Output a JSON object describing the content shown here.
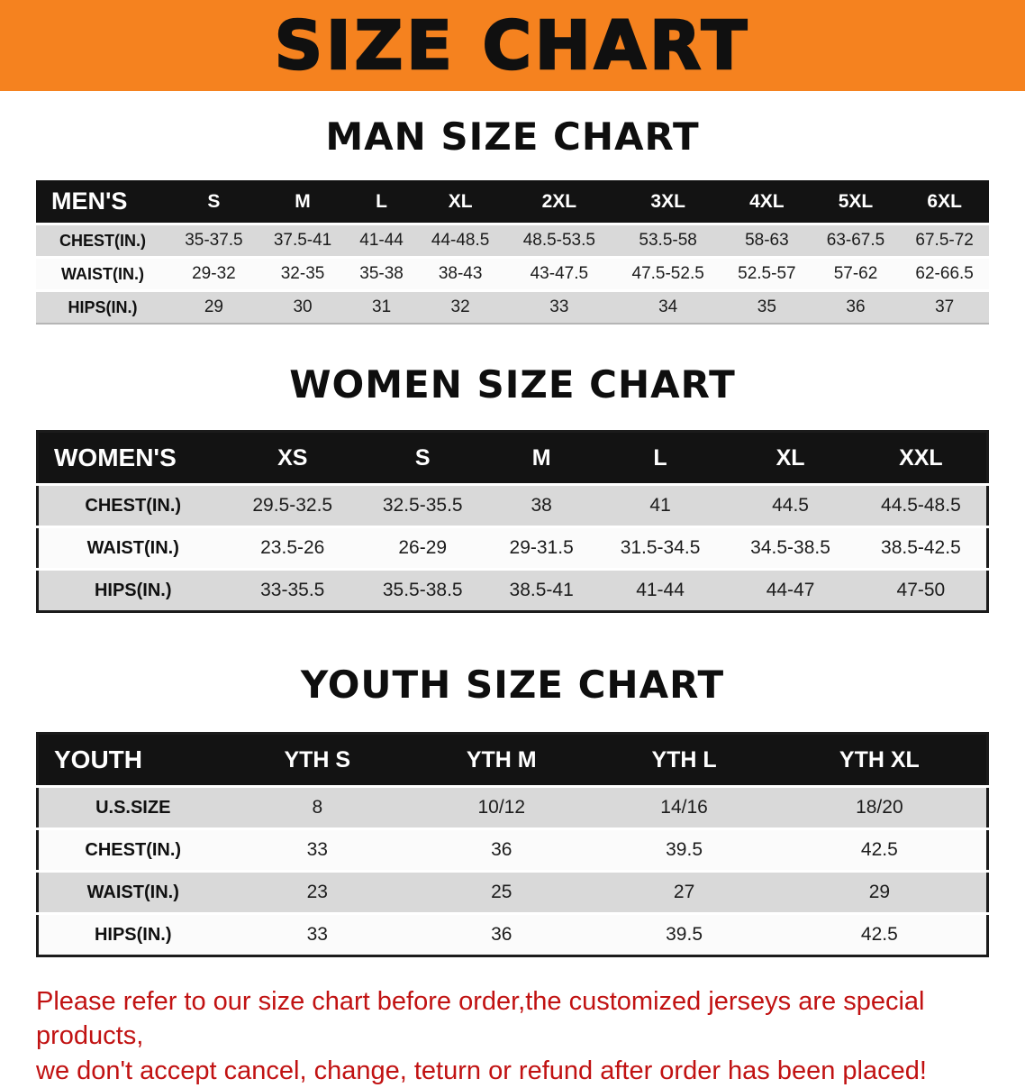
{
  "banner": {
    "title": "SIZE CHART",
    "bg_color": "#f5821f"
  },
  "colors": {
    "table_header_bar": "#131313",
    "row_shade": "#d9d9d9",
    "disclaimer_text": "#c11212"
  },
  "sections": [
    {
      "heading": "MAN SIZE CHART",
      "table": {
        "corner": "MEN'S",
        "columns": [
          "S",
          "M",
          "L",
          "XL",
          "2XL",
          "3XL",
          "4XL",
          "5XL",
          "6XL"
        ],
        "rows": [
          {
            "label": "CHEST(IN.)",
            "values": [
              "35-37.5",
              "37.5-41",
              "41-44",
              "44-48.5",
              "48.5-53.5",
              "53.5-58",
              "58-63",
              "63-67.5",
              "67.5-72"
            ]
          },
          {
            "label": "WAIST(IN.)",
            "values": [
              "29-32",
              "32-35",
              "35-38",
              "38-43",
              "43-47.5",
              "47.5-52.5",
              "52.5-57",
              "57-62",
              "62-66.5"
            ]
          },
          {
            "label": "HIPS(IN.)",
            "values": [
              "29",
              "30",
              "31",
              "32",
              "33",
              "34",
              "35",
              "36",
              "37"
            ]
          }
        ]
      }
    },
    {
      "heading": "WOMEN SIZE CHART",
      "table": {
        "corner": "WOMEN'S",
        "columns": [
          "XS",
          "S",
          "M",
          "L",
          "XL",
          "XXL"
        ],
        "rows": [
          {
            "label": "CHEST(IN.)",
            "values": [
              "29.5-32.5",
              "32.5-35.5",
              "38",
              "41",
              "44.5",
              "44.5-48.5"
            ]
          },
          {
            "label": "WAIST(IN.)",
            "values": [
              "23.5-26",
              "26-29",
              "29-31.5",
              "31.5-34.5",
              "34.5-38.5",
              "38.5-42.5"
            ]
          },
          {
            "label": "HIPS(IN.)",
            "values": [
              "33-35.5",
              "35.5-38.5",
              "38.5-41",
              "41-44",
              "44-47",
              "47-50"
            ]
          }
        ]
      }
    },
    {
      "heading": "YOUTH SIZE CHART",
      "table": {
        "corner": "YOUTH",
        "columns": [
          "YTH S",
          "YTH M",
          "YTH L",
          "YTH XL"
        ],
        "rows": [
          {
            "label": "U.S.SIZE",
            "values": [
              "8",
              "10/12",
              "14/16",
              "18/20"
            ]
          },
          {
            "label": "CHEST(IN.)",
            "values": [
              "33",
              "36",
              "39.5",
              "42.5"
            ]
          },
          {
            "label": "WAIST(IN.)",
            "values": [
              "23",
              "25",
              "27",
              "29"
            ]
          },
          {
            "label": "HIPS(IN.)",
            "values": [
              "33",
              "36",
              "39.5",
              "42.5"
            ]
          }
        ]
      }
    }
  ],
  "disclaimer": {
    "line1": "Please refer to our size chart before order,the customized jerseys are special products,",
    "line2": "we don't accept cancel, change, teturn or refund after order has been placed!"
  }
}
